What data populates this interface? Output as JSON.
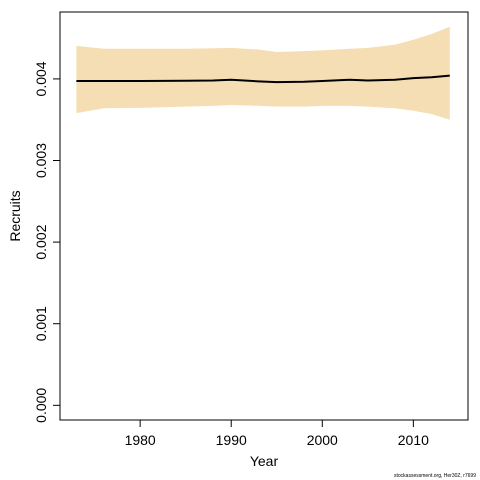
{
  "chart_data": {
    "type": "line_band",
    "xlabel": "Year",
    "ylabel": "Recruits",
    "footer": "stockassessment.org, Her30Z, r7699",
    "x": [
      1973,
      1976,
      1980,
      1985,
      1988,
      1990,
      1993,
      1995,
      1998,
      2000,
      2003,
      2005,
      2008,
      2010,
      2012,
      2014
    ],
    "series": [
      {
        "name": "Recruits",
        "color": "#000000",
        "values": [
          0.003975,
          0.003975,
          0.003975,
          0.003977,
          0.00398,
          0.00399,
          0.00397,
          0.00396,
          0.003965,
          0.003975,
          0.00399,
          0.00398,
          0.00399,
          0.00401,
          0.00402,
          0.00404
        ]
      }
    ],
    "band": {
      "color": "#f5deb3",
      "upper": [
        0.004405,
        0.00437,
        0.00437,
        0.00437,
        0.004375,
        0.00438,
        0.00436,
        0.00433,
        0.00434,
        0.00435,
        0.00437,
        0.00438,
        0.00442,
        0.00448,
        0.00455,
        0.00464
      ],
      "lower": [
        0.00358,
        0.00364,
        0.003645,
        0.00366,
        0.00367,
        0.00368,
        0.00367,
        0.00366,
        0.00366,
        0.00367,
        0.00367,
        0.00366,
        0.00364,
        0.00361,
        0.00357,
        0.0035
      ]
    },
    "xlim": [
      1971.2,
      2016
    ],
    "ylim": [
      -0.00018,
      0.00482
    ],
    "xticks": [
      1980,
      1990,
      2000,
      2010
    ],
    "yticks": [
      {
        "value": 0,
        "label": "0.000"
      },
      0.001,
      0.002,
      0.003,
      0.004
    ]
  }
}
